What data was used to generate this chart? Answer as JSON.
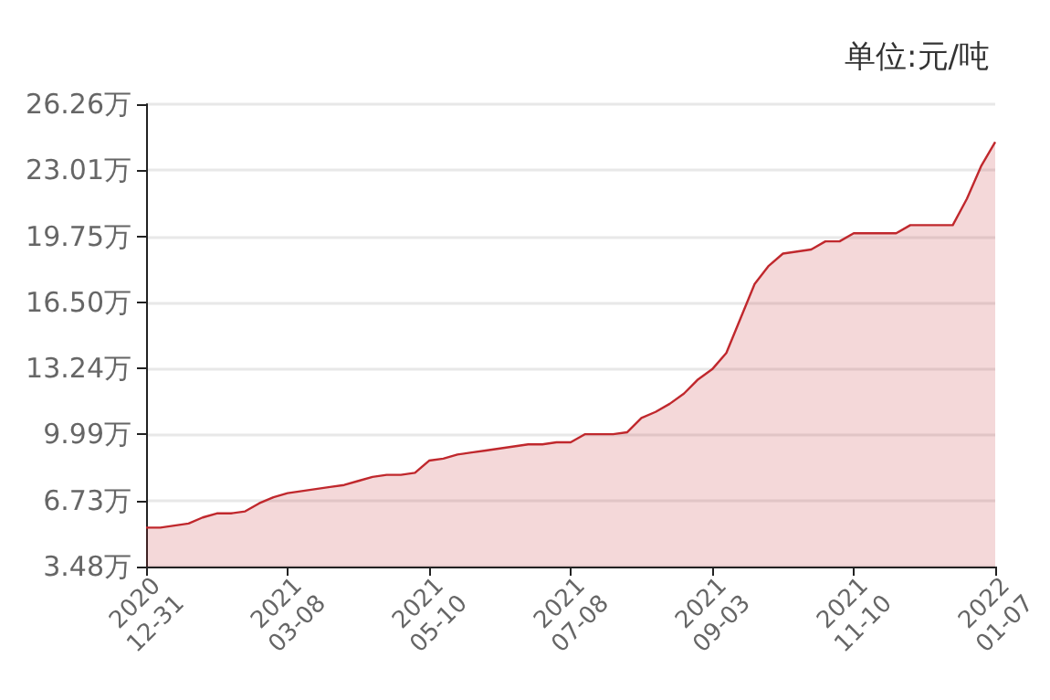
{
  "chart_data": {
    "type": "area",
    "title": "单位:元/吨",
    "categories": [
      "2020\n12-31",
      null,
      null,
      null,
      null,
      null,
      null,
      null,
      null,
      null,
      "2021\n03-08",
      null,
      null,
      null,
      null,
      null,
      null,
      null,
      null,
      null,
      "2021\n05-10",
      null,
      null,
      null,
      null,
      null,
      null,
      null,
      null,
      null,
      "2021\n07-08",
      null,
      null,
      null,
      null,
      null,
      null,
      null,
      null,
      null,
      "2021\n09-03",
      null,
      null,
      null,
      null,
      null,
      null,
      null,
      null,
      null,
      "2021\n11-10",
      null,
      null,
      null,
      null,
      null,
      null,
      null,
      null,
      null,
      "2022\n01-07"
    ],
    "series": [
      {
        "color": "#c0282d",
        "values": [
          5.4,
          5.4,
          5.5,
          5.6,
          5.9,
          6.1,
          6.1,
          6.2,
          6.6,
          6.9,
          7.1,
          7.2,
          7.3,
          7.4,
          7.5,
          7.7,
          7.9,
          8.0,
          8.0,
          8.1,
          8.7,
          8.8,
          9.0,
          9.1,
          9.2,
          9.3,
          9.4,
          9.5,
          9.5,
          9.6,
          9.6,
          10.0,
          10.0,
          10.0,
          10.1,
          10.8,
          11.1,
          11.5,
          12.0,
          12.7,
          13.2,
          14.0,
          15.7,
          17.4,
          18.3,
          18.9,
          19.0,
          19.1,
          19.5,
          19.5,
          19.9,
          19.9,
          19.9,
          19.9,
          20.3,
          20.3,
          20.3,
          20.3,
          21.6,
          23.2,
          24.4
        ]
      }
    ],
    "ylim": [
      3.48,
      26.26
    ],
    "yticks": [
      {
        "value": 3.48,
        "label": "3.48万"
      },
      {
        "value": 6.73,
        "label": "6.73万"
      },
      {
        "value": 9.99,
        "label": "9.99万"
      },
      {
        "value": 13.24,
        "label": "13.24万"
      },
      {
        "value": 16.5,
        "label": "16.50万"
      },
      {
        "value": 19.75,
        "label": "19.75万"
      },
      {
        "value": 23.01,
        "label": "23.01万"
      },
      {
        "value": 26.26,
        "label": "26.26万"
      }
    ],
    "grid": "y",
    "marker": "none",
    "line_style": "solid"
  }
}
